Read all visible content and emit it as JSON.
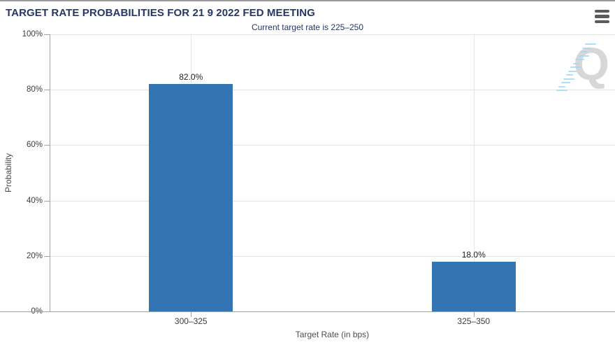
{
  "header": {
    "title": "TARGET RATE PROBABILITIES FOR 21 9 2022 FED MEETING"
  },
  "menu": {
    "icon": "hamburger-menu-icon"
  },
  "watermark": {
    "letter": "Q"
  },
  "chart_data": {
    "type": "bar",
    "title": "TARGET RATE PROBABILITIES FOR 21 9 2022 FED MEETING",
    "subtitle": "Current target rate is 225–250",
    "categories": [
      "300–325",
      "325–350"
    ],
    "values": [
      82.0,
      18.0
    ],
    "value_labels": [
      "82.0%",
      "18.0%"
    ],
    "xlabel": "Target Rate (in bps)",
    "ylabel": "Probability",
    "ylim": [
      0,
      100
    ],
    "yticks": [
      0,
      20,
      40,
      60,
      80,
      100
    ],
    "ytick_labels": [
      "0%",
      "20%",
      "40%",
      "60%",
      "80%",
      "100%"
    ],
    "grid": true,
    "legend_position": "none",
    "colors": {
      "bar": "#3375b2",
      "title": "#263765",
      "gridline": "#e3e3e3",
      "axis": "#a3a3a3"
    }
  }
}
